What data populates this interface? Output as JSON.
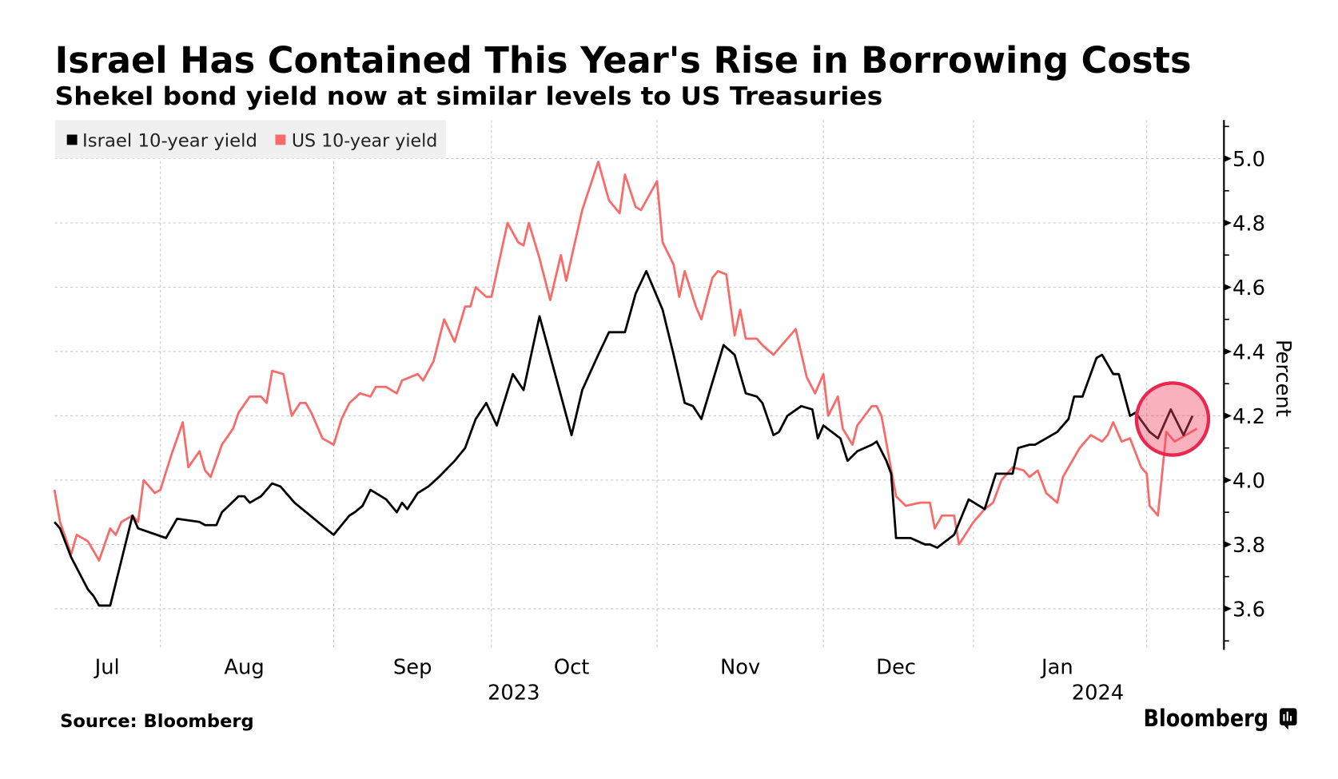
{
  "chart_data": {
    "type": "line",
    "title": "Israel Has Contained This Year's Rise in Borrowing Costs",
    "subtitle": "Shekel bond yield now at similar levels to US Treasuries",
    "xlabel": "",
    "ylabel": "Percent",
    "x_unit": "days since 2023-07-01",
    "ylim": [
      3.5,
      5.1
    ],
    "yticks": [
      "3.6",
      "3.8",
      "4.0",
      "4.2",
      "4.4",
      "4.6",
      "4.8",
      "5.0"
    ],
    "xticks": [
      {
        "label": "Jul",
        "day": 15
      },
      {
        "label": "Aug",
        "day": 46
      },
      {
        "label": "Sep",
        "day": 77
      },
      {
        "label": "Oct",
        "day": 107
      },
      {
        "label": "Nov",
        "day": 138
      },
      {
        "label": "Dec",
        "day": 168
      },
      {
        "label": "Jan",
        "day": 199
      }
    ],
    "month_boundaries_days": [
      31,
      62,
      92,
      123,
      153,
      184,
      215
    ],
    "year_labels": [
      {
        "label": "2023",
        "day": 92
      },
      {
        "label": "2024",
        "day": 213
      }
    ],
    "grid": true,
    "legend_position": "top-left",
    "series": [
      {
        "name": "Israel 10-year yield",
        "color": "#000000",
        "points": [
          [
            12,
            3.87
          ],
          [
            13,
            3.85
          ],
          [
            15,
            3.76
          ],
          [
            18,
            3.66
          ],
          [
            19,
            3.64
          ],
          [
            20,
            3.61
          ],
          [
            22,
            3.61
          ],
          [
            24,
            3.75
          ],
          [
            26,
            3.89
          ],
          [
            27,
            3.85
          ],
          [
            32,
            3.82
          ],
          [
            34,
            3.88
          ],
          [
            38,
            3.87
          ],
          [
            39,
            3.86
          ],
          [
            41,
            3.86
          ],
          [
            42,
            3.9
          ],
          [
            45,
            3.95
          ],
          [
            46,
            3.95
          ],
          [
            47,
            3.93
          ],
          [
            49,
            3.95
          ],
          [
            51,
            3.99
          ],
          [
            52.5,
            3.98
          ],
          [
            55,
            3.93
          ],
          [
            62,
            3.83
          ],
          [
            65,
            3.89
          ],
          [
            66,
            3.9
          ],
          [
            67.5,
            3.92
          ],
          [
            69,
            3.97
          ],
          [
            71,
            3.95
          ],
          [
            72,
            3.94
          ],
          [
            74,
            3.9
          ],
          [
            75,
            3.93
          ],
          [
            76,
            3.91
          ],
          [
            78,
            3.96
          ],
          [
            80,
            3.98
          ],
          [
            82,
            4.01
          ],
          [
            85,
            4.06
          ],
          [
            87,
            4.1
          ],
          [
            89,
            4.19
          ],
          [
            91,
            4.24
          ],
          [
            93,
            4.17
          ],
          [
            96,
            4.33
          ],
          [
            98,
            4.28
          ],
          [
            101,
            4.51
          ],
          [
            107,
            4.14
          ],
          [
            109,
            4.28
          ],
          [
            112,
            4.39
          ],
          [
            114,
            4.46
          ],
          [
            117,
            4.46
          ],
          [
            119,
            4.58
          ],
          [
            121,
            4.65
          ],
          [
            124,
            4.53
          ],
          [
            126,
            4.39
          ],
          [
            128,
            4.24
          ],
          [
            129.5,
            4.23
          ],
          [
            131,
            4.19
          ],
          [
            135,
            4.42
          ],
          [
            137,
            4.39
          ],
          [
            139,
            4.27
          ],
          [
            141,
            4.26
          ],
          [
            142,
            4.24
          ],
          [
            144,
            4.14
          ],
          [
            145,
            4.15
          ],
          [
            146.5,
            4.2
          ],
          [
            149,
            4.23
          ],
          [
            151,
            4.22
          ],
          [
            152,
            4.13
          ],
          [
            153,
            4.17
          ],
          [
            156.5,
            4.13
          ],
          [
            158,
            4.06
          ],
          [
            160,
            4.09
          ],
          [
            163,
            4.11
          ],
          [
            164,
            4.12
          ],
          [
            166,
            4.06
          ],
          [
            167,
            4.02
          ],
          [
            168,
            3.82
          ],
          [
            171,
            3.82
          ],
          [
            172.5,
            3.81
          ],
          [
            174,
            3.8
          ],
          [
            175,
            3.8
          ],
          [
            176.5,
            3.79
          ],
          [
            180,
            3.83
          ],
          [
            183,
            3.94
          ],
          [
            186,
            3.91
          ],
          [
            188,
            4.02
          ],
          [
            191,
            4.02
          ],
          [
            192,
            4.1
          ],
          [
            194,
            4.11
          ],
          [
            195,
            4.11
          ],
          [
            197,
            4.13
          ],
          [
            199,
            4.15
          ],
          [
            201,
            4.19
          ],
          [
            202,
            4.26
          ],
          [
            203.5,
            4.26
          ],
          [
            206,
            4.38
          ],
          [
            207,
            4.39
          ],
          [
            209,
            4.33
          ],
          [
            210,
            4.33
          ],
          [
            212,
            4.2
          ],
          [
            213,
            4.21
          ],
          [
            215.5,
            4.15
          ],
          [
            217,
            4.13
          ],
          [
            219.3,
            4.22
          ],
          [
            221.6,
            4.14
          ],
          [
            223.2,
            4.2
          ]
        ]
      },
      {
        "name": "US 10-year yield",
        "color": "#f86b6b",
        "points": [
          [
            12,
            3.97
          ],
          [
            13,
            3.87
          ],
          [
            15,
            3.77
          ],
          [
            16,
            3.83
          ],
          [
            18,
            3.81
          ],
          [
            19,
            3.78
          ],
          [
            20,
            3.75
          ],
          [
            22,
            3.85
          ],
          [
            23,
            3.83
          ],
          [
            24,
            3.87
          ],
          [
            26,
            3.89
          ],
          [
            27,
            3.87
          ],
          [
            28,
            4.0
          ],
          [
            30,
            3.96
          ],
          [
            31,
            3.97
          ],
          [
            33,
            4.08
          ],
          [
            35,
            4.18
          ],
          [
            36,
            4.04
          ],
          [
            38,
            4.09
          ],
          [
            39,
            4.03
          ],
          [
            40,
            4.01
          ],
          [
            42,
            4.11
          ],
          [
            44,
            4.16
          ],
          [
            45,
            4.21
          ],
          [
            47,
            4.26
          ],
          [
            49,
            4.26
          ],
          [
            50,
            4.24
          ],
          [
            51,
            4.34
          ],
          [
            53,
            4.33
          ],
          [
            54.5,
            4.2
          ],
          [
            56,
            4.24
          ],
          [
            57,
            4.24
          ],
          [
            58,
            4.21
          ],
          [
            60,
            4.13
          ],
          [
            62,
            4.11
          ],
          [
            63.5,
            4.19
          ],
          [
            65,
            4.24
          ],
          [
            67,
            4.27
          ],
          [
            69,
            4.26
          ],
          [
            70,
            4.29
          ],
          [
            72,
            4.29
          ],
          [
            74,
            4.27
          ],
          [
            75,
            4.31
          ],
          [
            78,
            4.33
          ],
          [
            79,
            4.31
          ],
          [
            81,
            4.37
          ],
          [
            83,
            4.5
          ],
          [
            85,
            4.43
          ],
          [
            87,
            4.54
          ],
          [
            88,
            4.54
          ],
          [
            89,
            4.6
          ],
          [
            91,
            4.57
          ],
          [
            92,
            4.57
          ],
          [
            95,
            4.8
          ],
          [
            97,
            4.74
          ],
          [
            98,
            4.73
          ],
          [
            99,
            4.8
          ],
          [
            101,
            4.69
          ],
          [
            103,
            4.56
          ],
          [
            105,
            4.7
          ],
          [
            106,
            4.62
          ],
          [
            109,
            4.84
          ],
          [
            112,
            4.99
          ],
          [
            114,
            4.87
          ],
          [
            116,
            4.83
          ],
          [
            117,
            4.95
          ],
          [
            119,
            4.85
          ],
          [
            120,
            4.84
          ],
          [
            123,
            4.93
          ],
          [
            124,
            4.74
          ],
          [
            126,
            4.67
          ],
          [
            127,
            4.57
          ],
          [
            128,
            4.65
          ],
          [
            130,
            4.54
          ],
          [
            131,
            4.5
          ],
          [
            133,
            4.63
          ],
          [
            134,
            4.65
          ],
          [
            135.5,
            4.64
          ],
          [
            137,
            4.45
          ],
          [
            138,
            4.53
          ],
          [
            139,
            4.44
          ],
          [
            141,
            4.44
          ],
          [
            142,
            4.42
          ],
          [
            144,
            4.39
          ],
          [
            145,
            4.41
          ],
          [
            148,
            4.47
          ],
          [
            150,
            4.32
          ],
          [
            151.5,
            4.27
          ],
          [
            153,
            4.33
          ],
          [
            154,
            4.2
          ],
          [
            156,
            4.26
          ],
          [
            157,
            4.16
          ],
          [
            159,
            4.11
          ],
          [
            160,
            4.17
          ],
          [
            163,
            4.23
          ],
          [
            164,
            4.23
          ],
          [
            165,
            4.2
          ],
          [
            168,
            3.95
          ],
          [
            170,
            3.92
          ],
          [
            173,
            3.93
          ],
          [
            175,
            3.93
          ],
          [
            176,
            3.85
          ],
          [
            177.5,
            3.89
          ],
          [
            180,
            3.89
          ],
          [
            181,
            3.8
          ],
          [
            184,
            3.87
          ],
          [
            186,
            3.91
          ],
          [
            187.5,
            3.93
          ],
          [
            189,
            4.0
          ],
          [
            191,
            4.04
          ],
          [
            193,
            4.03
          ],
          [
            194,
            4.01
          ],
          [
            195.5,
            4.03
          ],
          [
            197,
            3.96
          ],
          [
            199,
            3.93
          ],
          [
            200,
            4.01
          ],
          [
            203,
            4.1
          ],
          [
            205,
            4.14
          ],
          [
            207,
            4.12
          ],
          [
            208,
            4.14
          ],
          [
            209,
            4.18
          ],
          [
            210.5,
            4.12
          ],
          [
            212,
            4.13
          ],
          [
            214,
            4.04
          ],
          [
            215,
            4.02
          ],
          [
            215.5,
            3.92
          ],
          [
            217,
            3.89
          ],
          [
            218.5,
            4.15
          ],
          [
            220,
            4.12
          ],
          [
            222,
            4.14
          ],
          [
            223,
            4.15
          ],
          [
            224,
            4.16
          ]
        ]
      }
    ],
    "annotations": [
      {
        "type": "circle-highlight",
        "day": 219,
        "value": 4.19,
        "color": "#e8284f"
      }
    ]
  },
  "legend": {
    "items": [
      {
        "label": "Israel 10-year yield",
        "color": "#000000"
      },
      {
        "label": "US 10-year yield",
        "color": "#f86b6b"
      }
    ]
  },
  "footer": {
    "source": "Source: Bloomberg",
    "brand": "Bloomberg"
  }
}
